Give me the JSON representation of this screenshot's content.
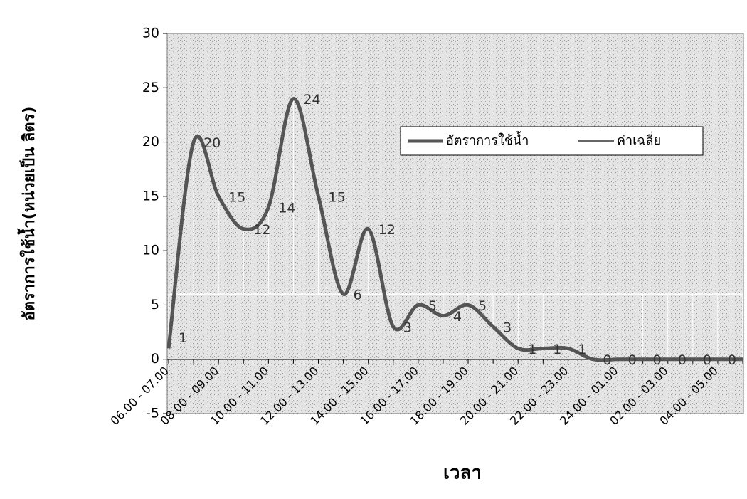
{
  "chart_data": {
    "type": "line",
    "x_label": "เวลา",
    "y_label": "อัตราการใช้น้ำ(หน่วยเป็น ลิตร)",
    "categories": [
      "06.00 - 07.00",
      null,
      "08.00 - 09.00",
      null,
      "10.00 - 11.00",
      null,
      "12.00 - 13.00",
      null,
      "14.00 - 15.00",
      null,
      "16.00 - 17.00",
      null,
      "18.00 - 19.00",
      null,
      "20.00 - 21.00",
      null,
      "22.00 - 23.00",
      null,
      "24.00 - 01.00",
      null,
      "02.00 - 03.00",
      null,
      "04.00 - 05.00",
      null
    ],
    "series": [
      {
        "name": "อัตราการใช้น้ำ",
        "color": "#555555",
        "values": [
          1,
          20,
          15,
          12,
          14,
          24,
          15,
          6,
          12,
          3,
          5,
          4,
          5,
          3,
          1,
          1,
          1,
          0,
          0,
          0,
          0,
          0,
          0,
          0
        ]
      },
      {
        "name": "ค่าเฉลี่ย",
        "color": "#333333",
        "values": [
          6,
          6,
          6,
          6,
          6,
          6,
          6,
          6,
          6,
          6,
          6,
          6,
          6,
          6,
          6,
          6,
          6,
          6,
          6,
          6,
          6,
          6,
          6,
          6
        ]
      }
    ],
    "ylim": [
      -5,
      30
    ],
    "yticks": [
      -5,
      0,
      5,
      10,
      15,
      20,
      25,
      30
    ],
    "legend": "upper right"
  }
}
